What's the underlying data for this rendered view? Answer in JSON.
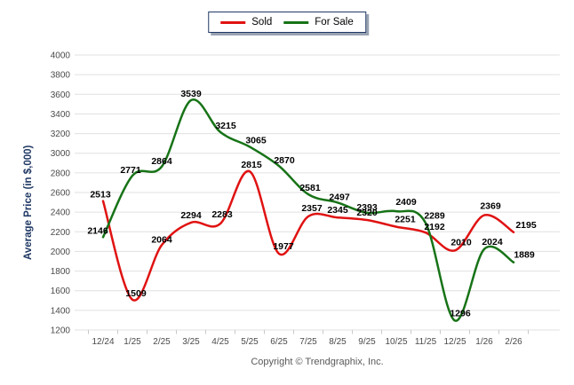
{
  "chart_data": {
    "type": "line",
    "title": "",
    "xlabel": "",
    "ylabel": "Average Price (in $,000)",
    "categories": [
      "12/24",
      "1/25",
      "2/25",
      "3/25",
      "4/25",
      "5/25",
      "6/25",
      "7/25",
      "8/25",
      "9/25",
      "10/25",
      "11/25",
      "12/25",
      "1/26",
      "2/26"
    ],
    "series": [
      {
        "name": "Sold",
        "color": "#e01212",
        "values": [
          2513,
          1509,
          2064,
          2294,
          2283,
          2815,
          1977,
          2357,
          2345,
          2320,
          2251,
          2192,
          2010,
          2369,
          2195
        ]
      },
      {
        "name": "For Sale",
        "color": "#177317",
        "values": [
          2146,
          2771,
          2864,
          3539,
          3215,
          3065,
          2870,
          2581,
          2497,
          2393,
          2409,
          2289,
          1296,
          2024,
          1889
        ]
      }
    ],
    "ylim": [
      1200,
      4000
    ],
    "yticks": [
      1200,
      1400,
      1600,
      1800,
      2000,
      2200,
      2400,
      2600,
      2800,
      3000,
      3200,
      3400,
      3600,
      3800,
      4000
    ],
    "grid": true,
    "smooth": true,
    "legend_position": "top-center",
    "label_offsets": {
      "Sold": [
        [
          -3,
          -4
        ],
        [
          4,
          -4
        ],
        [
          0,
          -3
        ],
        [
          0,
          -5
        ],
        [
          2,
          -7
        ],
        [
          2,
          -4
        ],
        [
          5,
          -5
        ],
        [
          4,
          -6
        ],
        [
          0,
          -5
        ],
        [
          0,
          -5
        ],
        [
          10,
          -5
        ],
        [
          10,
          -3
        ],
        [
          7,
          -6
        ],
        [
          7,
          -7
        ],
        [
          14,
          -5
        ]
      ],
      "For Sale": [
        [
          -6,
          -4
        ],
        [
          -2,
          -3
        ],
        [
          0,
          -3
        ],
        [
          0,
          -4
        ],
        [
          6,
          -4
        ],
        [
          7,
          -4
        ],
        [
          6,
          -3
        ],
        [
          2,
          -4
        ],
        [
          2,
          -3
        ],
        [
          0,
          -3
        ],
        [
          11,
          -7
        ],
        [
          10,
          -5
        ],
        [
          6,
          -5
        ],
        [
          9,
          -5
        ],
        [
          12,
          -5
        ]
      ]
    }
  },
  "colors": {
    "grid": "#e0e0e0",
    "tick": "#c9c9c9",
    "axis_text": "#4a4a4a",
    "data_label_text": "#000000",
    "ylabel_color": "#1f3864",
    "legend_border": "#1f3864",
    "copyright_text": "#595959"
  },
  "footer": {
    "copyright": "Copyright © Trendgraphix, Inc."
  }
}
